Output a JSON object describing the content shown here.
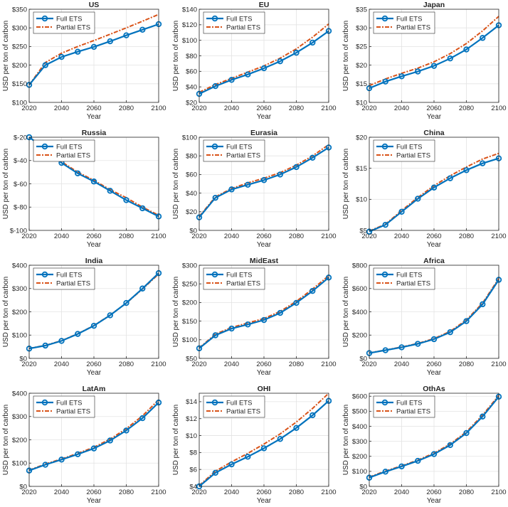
{
  "figure": {
    "xlabel": "Year",
    "ylabel": "USD per ton of carbon"
  },
  "legend": [
    "Full ETS",
    "Partial ETS"
  ],
  "colors": {
    "full": "#0072BD",
    "partial": "#D95319"
  },
  "chart_data": [
    {
      "type": "line",
      "title": "US",
      "x": [
        2020,
        2030,
        2040,
        2050,
        2060,
        2070,
        2080,
        2090,
        2100
      ],
      "xticks": [
        2020,
        2040,
        2060,
        2080,
        2100
      ],
      "xtick_labels": [
        "2020",
        "2040",
        "2060",
        "2080",
        "2100"
      ],
      "ylim": [
        100,
        350
      ],
      "yticks": [
        100,
        150,
        200,
        250,
        300,
        350
      ],
      "ytick_labels": [
        "$100",
        "$150",
        "$200",
        "$250",
        "$300",
        "$350"
      ],
      "series": [
        {
          "name": "Full ETS",
          "values": [
            147,
            200,
            222,
            236,
            249,
            264,
            280,
            295,
            310
          ]
        },
        {
          "name": "Partial ETS",
          "values": [
            147,
            207,
            232,
            250,
            266,
            283,
            300,
            318,
            336
          ]
        }
      ]
    },
    {
      "type": "line",
      "title": "EU",
      "x": [
        2020,
        2030,
        2040,
        2050,
        2060,
        2070,
        2080,
        2090,
        2100
      ],
      "xticks": [
        2020,
        2040,
        2060,
        2080,
        2100
      ],
      "xtick_labels": [
        "2020",
        "2040",
        "2060",
        "2080",
        "2100"
      ],
      "ylim": [
        20,
        140
      ],
      "yticks": [
        20,
        40,
        60,
        80,
        100,
        120,
        140
      ],
      "ytick_labels": [
        "$20",
        "$40",
        "$60",
        "$80",
        "$100",
        "$120",
        "$140"
      ],
      "series": [
        {
          "name": "Full ETS",
          "values": [
            31,
            41,
            49,
            56,
            64,
            73,
            84,
            97,
            112
          ]
        },
        {
          "name": "Partial ETS",
          "values": [
            33,
            43,
            51,
            59,
            67,
            77,
            89,
            104,
            121
          ]
        }
      ]
    },
    {
      "type": "line",
      "title": "Japan",
      "x": [
        2020,
        2030,
        2040,
        2050,
        2060,
        2070,
        2080,
        2090,
        2100
      ],
      "xticks": [
        2020,
        2040,
        2060,
        2080,
        2100
      ],
      "xtick_labels": [
        "2020",
        "2040",
        "2060",
        "2080",
        "2100"
      ],
      "ylim": [
        10,
        35
      ],
      "yticks": [
        10,
        15,
        20,
        25,
        30,
        35
      ],
      "ytick_labels": [
        "$10",
        "$15",
        "$20",
        "$25",
        "$30",
        "$35"
      ],
      "series": [
        {
          "name": "Full ETS",
          "values": [
            13.8,
            15.6,
            17.0,
            18.3,
            19.8,
            21.8,
            24.2,
            27.3,
            30.7
          ]
        },
        {
          "name": "Partial ETS",
          "values": [
            14.5,
            16.3,
            17.8,
            19.2,
            20.9,
            23.1,
            25.8,
            29.2,
            33.1
          ]
        }
      ]
    },
    {
      "type": "line",
      "title": "Russia",
      "x": [
        2020,
        2030,
        2040,
        2050,
        2060,
        2070,
        2080,
        2090,
        2100
      ],
      "xticks": [
        2020,
        2040,
        2060,
        2080,
        2100
      ],
      "xtick_labels": [
        "2020",
        "2040",
        "2060",
        "2080",
        "2100"
      ],
      "ylim": [
        -100,
        -20
      ],
      "yticks": [
        -100,
        -80,
        -60,
        -40,
        -20
      ],
      "ytick_labels": [
        "$-100",
        "$-80",
        "$-60",
        "$-40",
        "$-20"
      ],
      "series": [
        {
          "name": "Full ETS",
          "values": [
            -20,
            -30,
            -42,
            -51,
            -58,
            -66,
            -74,
            -81,
            -88
          ]
        },
        {
          "name": "Partial ETS",
          "values": [
            -20,
            -29,
            -41,
            -50,
            -57,
            -65,
            -72,
            -80,
            -87
          ]
        }
      ]
    },
    {
      "type": "line",
      "title": "Eurasia",
      "x": [
        2020,
        2030,
        2040,
        2050,
        2060,
        2070,
        2080,
        2090,
        2100
      ],
      "xticks": [
        2020,
        2040,
        2060,
        2080,
        2100
      ],
      "xtick_labels": [
        "2020",
        "2040",
        "2060",
        "2080",
        "2100"
      ],
      "ylim": [
        0,
        100
      ],
      "yticks": [
        0,
        20,
        40,
        60,
        80,
        100
      ],
      "ytick_labels": [
        "$0",
        "$20",
        "$40",
        "$60",
        "$80",
        "$100"
      ],
      "series": [
        {
          "name": "Full ETS",
          "values": [
            14,
            35,
            44,
            49,
            54,
            60,
            68,
            78,
            89
          ]
        },
        {
          "name": "Partial ETS",
          "values": [
            15,
            36,
            45,
            51,
            56,
            62,
            70,
            80,
            92
          ]
        }
      ]
    },
    {
      "type": "line",
      "title": "China",
      "x": [
        2020,
        2030,
        2040,
        2050,
        2060,
        2070,
        2080,
        2090,
        2100
      ],
      "xticks": [
        2020,
        2040,
        2060,
        2080,
        2100
      ],
      "xtick_labels": [
        "2020",
        "2040",
        "2060",
        "2080",
        "2100"
      ],
      "ylim": [
        5,
        20
      ],
      "yticks": [
        5,
        10,
        15,
        20
      ],
      "ytick_labels": [
        "$5",
        "$10",
        "$15",
        "$20"
      ],
      "series": [
        {
          "name": "Full ETS",
          "values": [
            4.8,
            5.9,
            8.0,
            10.1,
            11.9,
            13.4,
            14.7,
            15.8,
            16.6
          ]
        },
        {
          "name": "Partial ETS",
          "values": [
            4.9,
            6.0,
            8.2,
            10.3,
            12.2,
            13.8,
            15.2,
            16.5,
            17.4
          ]
        }
      ]
    },
    {
      "type": "line",
      "title": "India",
      "x": [
        2020,
        2030,
        2040,
        2050,
        2060,
        2070,
        2080,
        2090,
        2100
      ],
      "xticks": [
        2020,
        2040,
        2060,
        2080,
        2100
      ],
      "xtick_labels": [
        "2020",
        "2040",
        "2060",
        "2080",
        "2100"
      ],
      "ylim": [
        0,
        400
      ],
      "yticks": [
        0,
        100,
        200,
        300,
        400
      ],
      "ytick_labels": [
        "$0",
        "$100",
        "$200",
        "$300",
        "$400"
      ],
      "series": [
        {
          "name": "Full ETS",
          "values": [
            42,
            55,
            75,
            105,
            140,
            185,
            238,
            300,
            366
          ]
        },
        {
          "name": "Partial ETS",
          "values": [
            43,
            56,
            76,
            106,
            141,
            186,
            237,
            298,
            362
          ]
        }
      ]
    },
    {
      "type": "line",
      "title": "MidEast",
      "x": [
        2020,
        2030,
        2040,
        2050,
        2060,
        2070,
        2080,
        2090,
        2100
      ],
      "xticks": [
        2020,
        2040,
        2060,
        2080,
        2100
      ],
      "xtick_labels": [
        "2020",
        "2040",
        "2060",
        "2080",
        "2100"
      ],
      "ylim": [
        50,
        300
      ],
      "yticks": [
        50,
        100,
        150,
        200,
        250,
        300
      ],
      "ytick_labels": [
        "$50",
        "$100",
        "$150",
        "$200",
        "$250",
        "$300"
      ],
      "series": [
        {
          "name": "Full ETS",
          "values": [
            77,
            112,
            130,
            141,
            153,
            172,
            199,
            231,
            267
          ]
        },
        {
          "name": "Partial ETS",
          "values": [
            78,
            115,
            133,
            145,
            157,
            176,
            203,
            236,
            272
          ]
        }
      ]
    },
    {
      "type": "line",
      "title": "Africa",
      "x": [
        2020,
        2030,
        2040,
        2050,
        2060,
        2070,
        2080,
        2090,
        2100
      ],
      "xticks": [
        2020,
        2040,
        2060,
        2080,
        2100
      ],
      "xtick_labels": [
        "2020",
        "2040",
        "2060",
        "2080",
        "2100"
      ],
      "ylim": [
        0,
        800
      ],
      "yticks": [
        0,
        200,
        400,
        600,
        800
      ],
      "ytick_labels": [
        "$0",
        "$200",
        "$400",
        "$600",
        "$800"
      ],
      "series": [
        {
          "name": "Full ETS",
          "values": [
            45,
            70,
            95,
            125,
            165,
            225,
            320,
            465,
            675
          ]
        },
        {
          "name": "Partial ETS",
          "values": [
            47,
            72,
            98,
            128,
            170,
            232,
            330,
            475,
            685
          ]
        }
      ]
    },
    {
      "type": "line",
      "title": "LatAm",
      "x": [
        2020,
        2030,
        2040,
        2050,
        2060,
        2070,
        2080,
        2090,
        2100
      ],
      "xticks": [
        2020,
        2040,
        2060,
        2080,
        2100
      ],
      "xtick_labels": [
        "2020",
        "2040",
        "2060",
        "2080",
        "2100"
      ],
      "ylim": [
        0,
        400
      ],
      "yticks": [
        0,
        100,
        200,
        300,
        400
      ],
      "ytick_labels": [
        "$0",
        "$100",
        "$200",
        "$300",
        "$400"
      ],
      "series": [
        {
          "name": "Full ETS",
          "values": [
            68,
            93,
            115,
            138,
            163,
            197,
            240,
            293,
            360
          ]
        },
        {
          "name": "Partial ETS",
          "values": [
            70,
            96,
            118,
            142,
            168,
            203,
            248,
            303,
            372
          ]
        }
      ]
    },
    {
      "type": "line",
      "title": "OHI",
      "x": [
        2020,
        2030,
        2040,
        2050,
        2060,
        2070,
        2080,
        2090,
        2100
      ],
      "xticks": [
        2020,
        2040,
        2060,
        2080,
        2100
      ],
      "xtick_labels": [
        "2020",
        "2040",
        "2060",
        "2080",
        "2100"
      ],
      "ylim": [
        4,
        15
      ],
      "yticks": [
        4,
        6,
        8,
        10,
        12,
        14
      ],
      "ytick_labels": [
        "$4",
        "$6",
        "$8",
        "$10",
        "$12",
        "$14"
      ],
      "series": [
        {
          "name": "Full ETS",
          "values": [
            4.0,
            5.6,
            6.6,
            7.5,
            8.5,
            9.6,
            10.9,
            12.4,
            14.1
          ]
        },
        {
          "name": "Partial ETS",
          "values": [
            4.1,
            5.8,
            6.9,
            7.9,
            9.0,
            10.2,
            11.6,
            13.2,
            15.0
          ]
        }
      ]
    },
    {
      "type": "line",
      "title": "OthAs",
      "x": [
        2020,
        2030,
        2040,
        2050,
        2060,
        2070,
        2080,
        2090,
        2100
      ],
      "xticks": [
        2020,
        2040,
        2060,
        2080,
        2100
      ],
      "xtick_labels": [
        "2020",
        "2040",
        "2060",
        "2080",
        "2100"
      ],
      "ylim": [
        0,
        620
      ],
      "yticks": [
        0,
        100,
        200,
        300,
        400,
        500,
        600
      ],
      "ytick_labels": [
        "$0",
        "$100",
        "$200",
        "$300",
        "$400",
        "$500",
        "$600"
      ],
      "series": [
        {
          "name": "Full ETS",
          "values": [
            58,
            98,
            133,
            170,
            215,
            275,
            355,
            465,
            597
          ]
        },
        {
          "name": "Partial ETS",
          "values": [
            62,
            102,
            137,
            175,
            221,
            282,
            363,
            474,
            605
          ]
        }
      ]
    }
  ]
}
